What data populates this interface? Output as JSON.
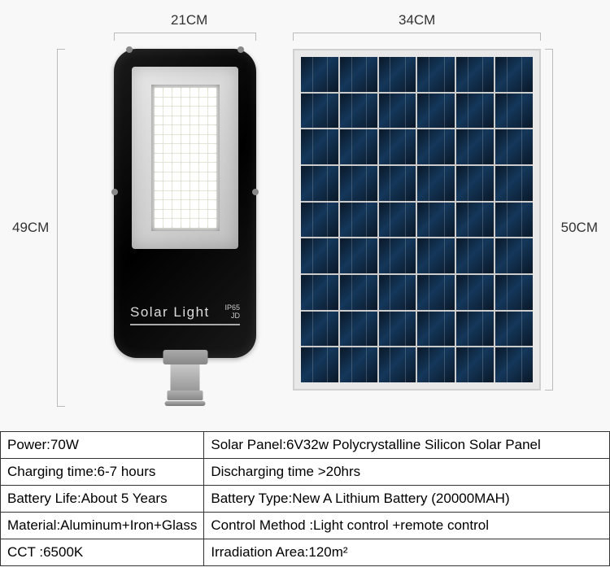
{
  "dimensions": {
    "light_width": "21CM",
    "panel_width": "34CM",
    "light_height": "49CM",
    "panel_height": "50CM"
  },
  "product": {
    "brand_text": "Solar Light",
    "rating_line1": "IP65",
    "rating_line2": "JD",
    "led_rows": 15,
    "led_cols": 7,
    "body_color": "#000000",
    "led_panel_color": "#d0d0d0",
    "mount_color": "#a0a0a0"
  },
  "solar_panel": {
    "rows": 9,
    "cols": 6,
    "cell_color": "#0f2a44",
    "frame_color": "#e8e8e8"
  },
  "specs": {
    "rows": [
      [
        "Power:70W",
        "Solar Panel:6V32w Polycrystalline Silicon Solar Panel"
      ],
      [
        "Charging time:6-7 hours",
        "Discharging time >20hrs"
      ],
      [
        "Battery Life:About 5 Years",
        "Battery Type:New A Lithium Battery (20000MAH)"
      ],
      [
        "Material:Aluminum+Iron+Glass",
        "Control Method :Light control +remote control"
      ],
      [
        "CCT :6500K",
        "Irradiation Area:120m²"
      ]
    ],
    "border_color": "#333333",
    "font_size": 17
  },
  "colors": {
    "background": "#f8f8f8",
    "label_text": "#333333"
  }
}
